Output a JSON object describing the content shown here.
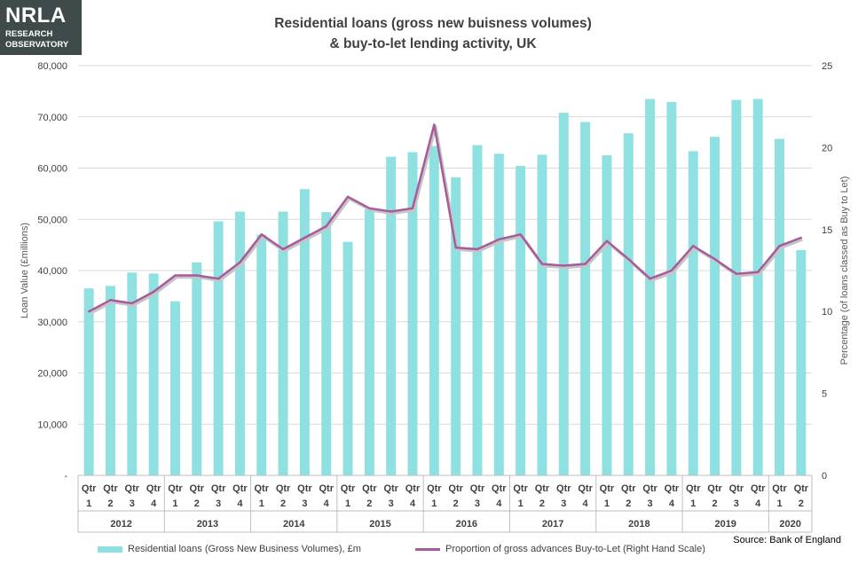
{
  "logo": {
    "brand": "NRLA",
    "line1": "RESEARCH",
    "line2": "OBSERVATORY"
  },
  "title_line1": "Residential loans (gross new buisness volumes)",
  "title_line2": "& buy-to-let lending activity, UK",
  "source": "Source: Bank of England",
  "colors": {
    "bar": "#8fe0e0",
    "line": "#a75b9c"
  },
  "chart_data": {
    "type": "bar",
    "title": "Residential loans (gross new buisness volumes) & buy-to-let lending activity, UK",
    "ylabel": "Loan Value (£millions)",
    "y2label": "Percentage (of loans classed as Buy to Let)",
    "ylim": [
      0,
      80000
    ],
    "y2lim": [
      0,
      25
    ],
    "yticks": [
      "-",
      "10,000",
      "20,000",
      "30,000",
      "40,000",
      "50,000",
      "60,000",
      "70,000",
      "80,000"
    ],
    "y2ticks": [
      "0",
      "5",
      "10",
      "15",
      "20",
      "25"
    ],
    "quarter_labels": [
      "Qtr 1",
      "Qtr 2",
      "Qtr 3",
      "Qtr 4",
      "Qtr 1",
      "Qtr 2",
      "Qtr 3",
      "Qtr 4",
      "Qtr 1",
      "Qtr 2",
      "Qtr 3",
      "Qtr 4",
      "Qtr 1",
      "Qtr 2",
      "Qtr 3",
      "Qtr 4",
      "Qtr 1",
      "Qtr 2",
      "Qtr 3",
      "Qtr 4",
      "Qtr 1",
      "Qtr 2",
      "Qtr 3",
      "Qtr 4",
      "Qtr 1",
      "Qtr 2",
      "Qtr 3",
      "Qtr 4",
      "Qtr 1",
      "Qtr 2",
      "Qtr 3",
      "Qtr 4",
      "Qtr 1",
      "Qtr 2"
    ],
    "years": [
      {
        "label": "2012",
        "count": 4
      },
      {
        "label": "2013",
        "count": 4
      },
      {
        "label": "2014",
        "count": 4
      },
      {
        "label": "2015",
        "count": 4
      },
      {
        "label": "2016",
        "count": 4
      },
      {
        "label": "2017",
        "count": 4
      },
      {
        "label": "2018",
        "count": 4
      },
      {
        "label": "2019",
        "count": 4
      },
      {
        "label": "2020",
        "count": 2
      }
    ],
    "series": [
      {
        "name": "Residential loans (Gross New Business Volumes), £m",
        "type": "bar",
        "axis": "left",
        "values": [
          36500,
          37000,
          39600,
          39400,
          34000,
          41600,
          49600,
          51500,
          47000,
          51500,
          55900,
          51400,
          45600,
          52000,
          62200,
          63100,
          64300,
          58200,
          64500,
          62800,
          60400,
          62600,
          70800,
          69000,
          62500,
          66800,
          73500,
          72900,
          63300,
          66100,
          73300,
          73500,
          65700,
          44000
        ]
      },
      {
        "name": "Proportion of gross advances Buy-to-Let (Right Hand Scale)",
        "type": "line",
        "axis": "right",
        "values": [
          10.0,
          10.7,
          10.5,
          11.2,
          12.2,
          12.2,
          12.0,
          13.0,
          14.7,
          13.8,
          14.5,
          15.2,
          17.0,
          16.3,
          16.1,
          16.3,
          21.4,
          13.9,
          13.8,
          14.4,
          14.7,
          12.9,
          12.8,
          12.9,
          14.3,
          13.2,
          12.0,
          12.5,
          14.0,
          13.2,
          12.3,
          12.4,
          14.0,
          14.5
        ]
      }
    ],
    "legend": "bottom",
    "grid": true
  }
}
